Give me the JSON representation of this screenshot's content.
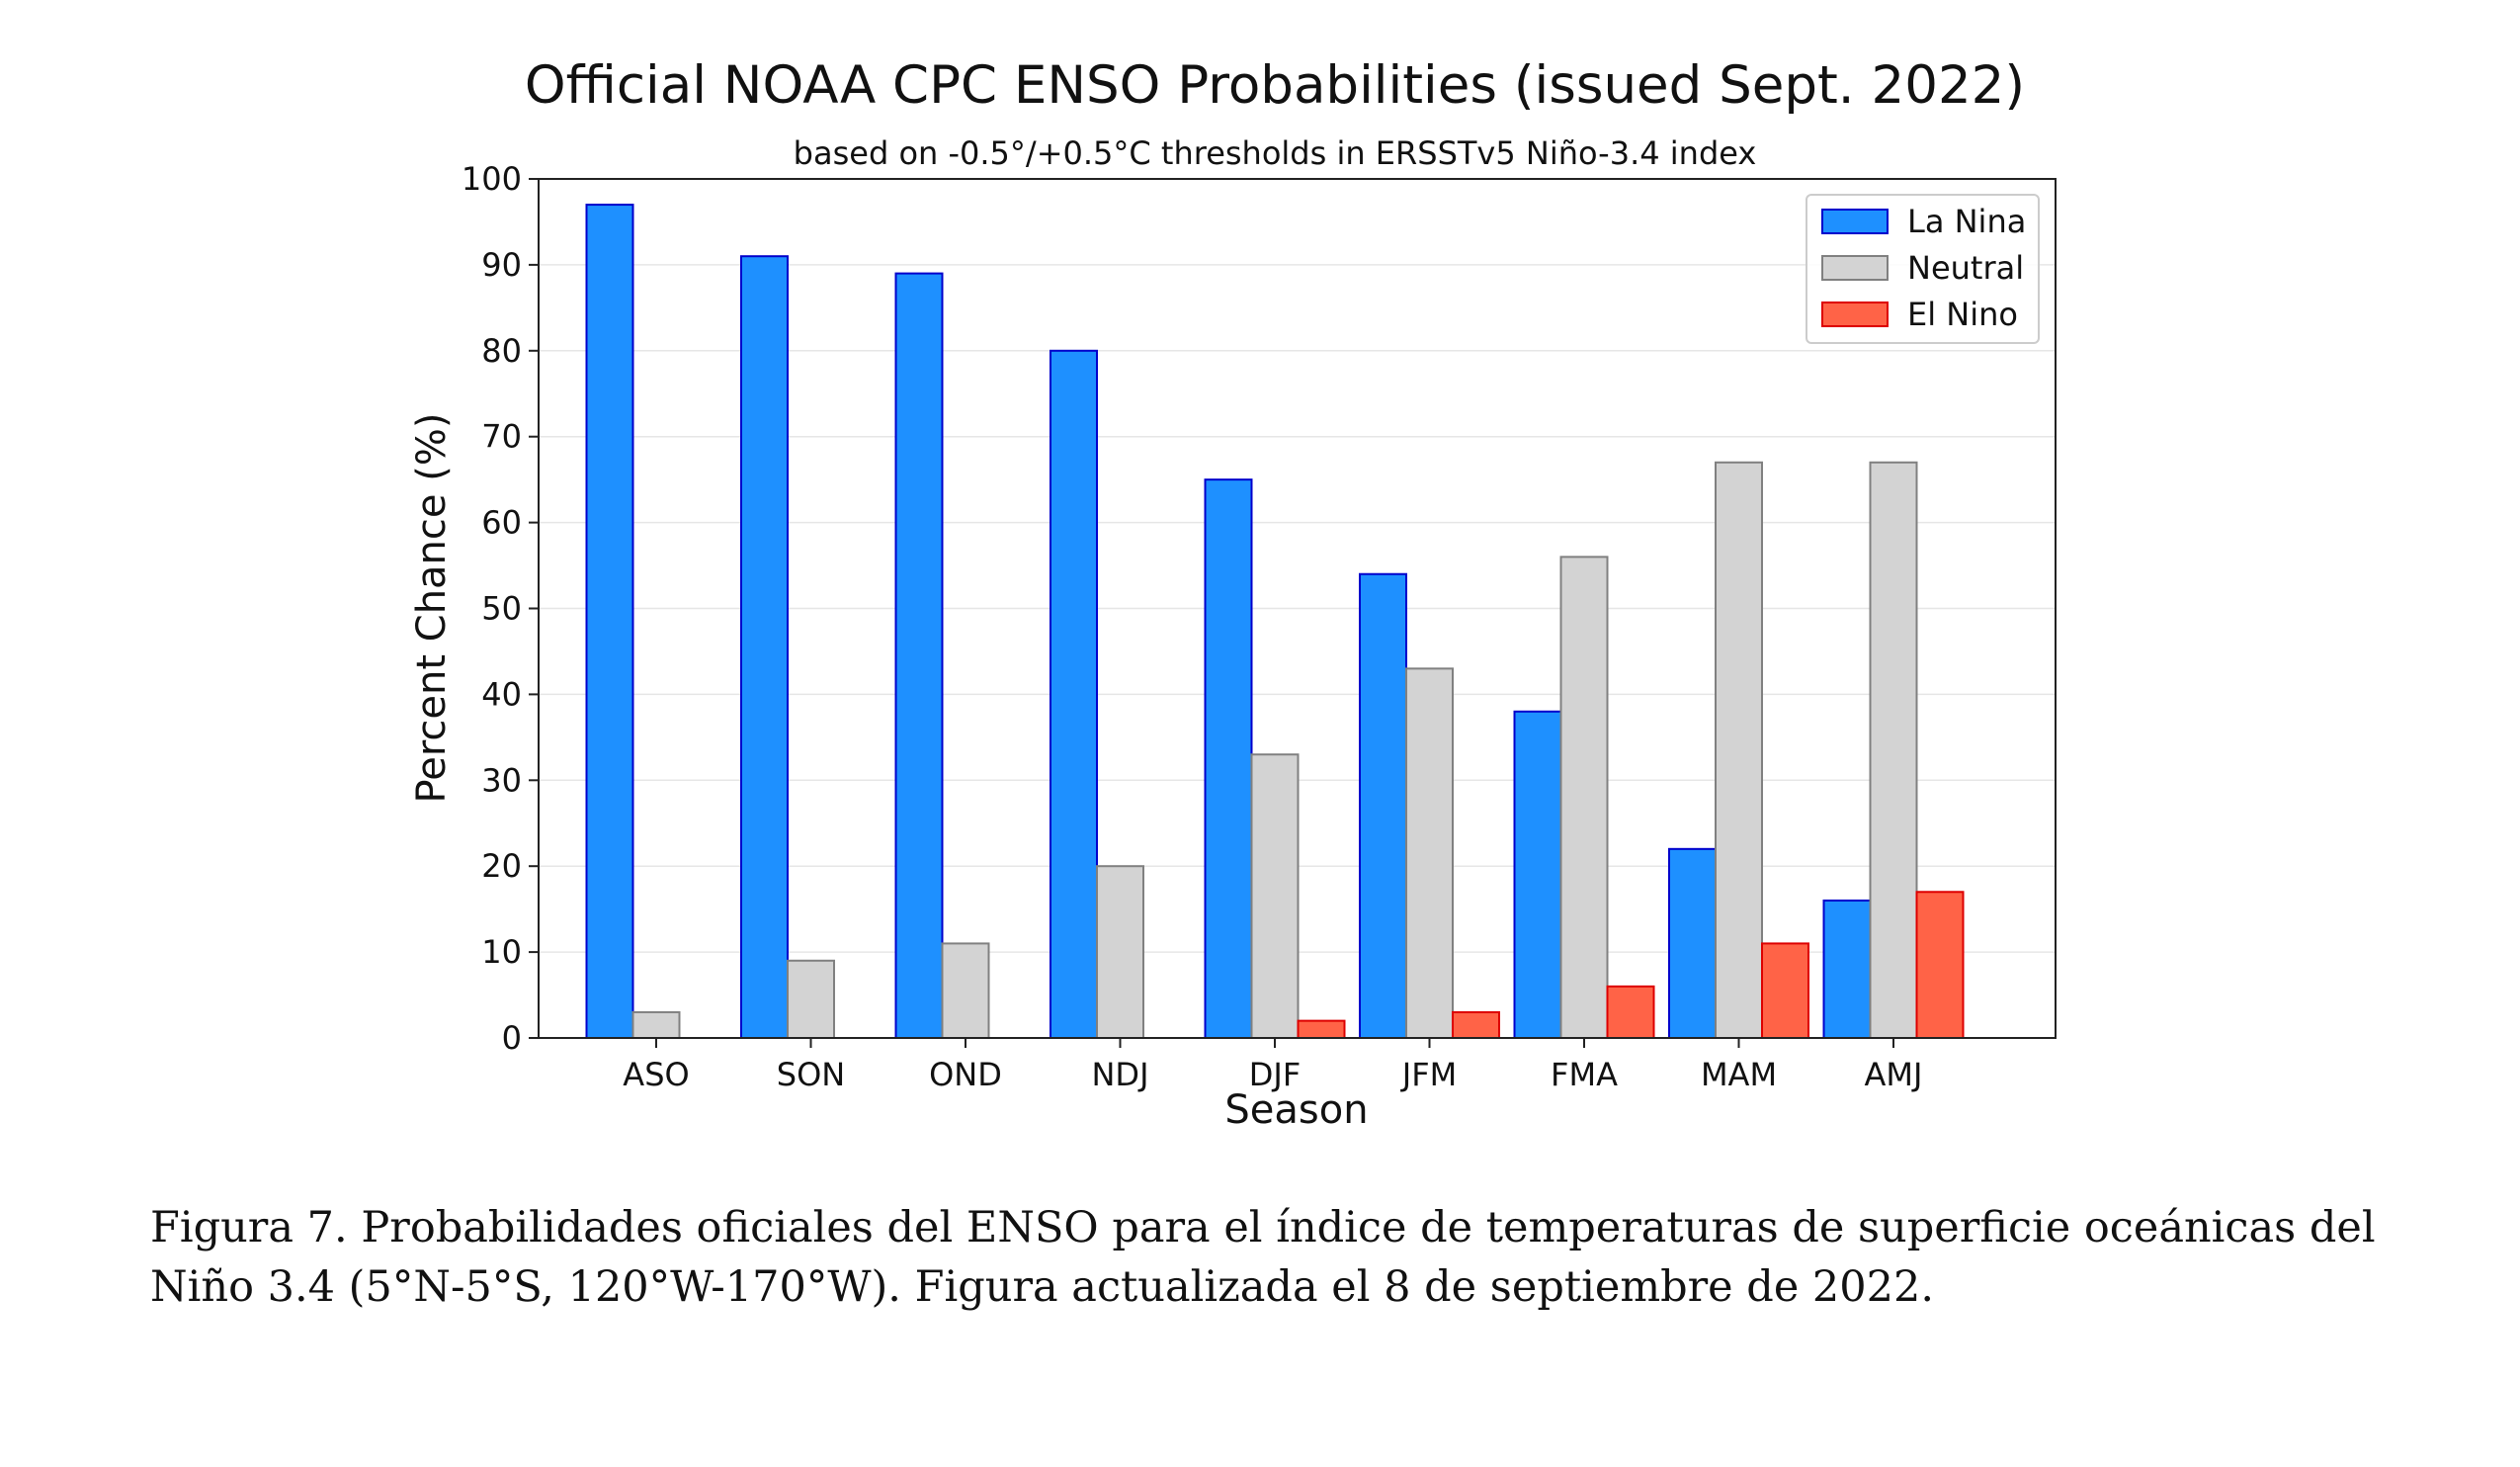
{
  "chart_data": {
    "type": "bar",
    "title": "Official NOAA CPC ENSO Probabilities (issued Sept. 2022)",
    "subtitle": "based on -0.5°/+0.5°C thresholds in ERSSTv5 Niño-3.4 index",
    "xlabel": "Season",
    "ylabel": "Percent Chance (%)",
    "ylim": [
      0,
      100
    ],
    "yticks": [
      0,
      10,
      20,
      30,
      40,
      50,
      60,
      70,
      80,
      90,
      100
    ],
    "grid": true,
    "legend_position": "top-right",
    "categories": [
      "ASO",
      "SON",
      "OND",
      "NDJ",
      "DJF",
      "JFM",
      "FMA",
      "MAM",
      "AMJ"
    ],
    "series": [
      {
        "name": "La Nina",
        "color": "#1e90ff",
        "edge": "#0000cc",
        "values": [
          97,
          91,
          89,
          80,
          65,
          54,
          38,
          22,
          16
        ]
      },
      {
        "name": "Neutral",
        "color": "#d3d3d3",
        "edge": "#808080",
        "values": [
          3,
          9,
          11,
          20,
          33,
          43,
          56,
          67,
          67
        ]
      },
      {
        "name": "El Nino",
        "color": "#ff6347",
        "edge": "#dd0000",
        "values": [
          0,
          0,
          0,
          0,
          2,
          3,
          6,
          11,
          17
        ]
      }
    ]
  },
  "caption": "Figura 7. Probabilidades oficiales del ENSO para el índice de temperaturas de superficie oceánicas del Niño 3.4 (5°N-5°S, 120°W-170°W). Figura actualizada el 8 de septiembre de 2022."
}
